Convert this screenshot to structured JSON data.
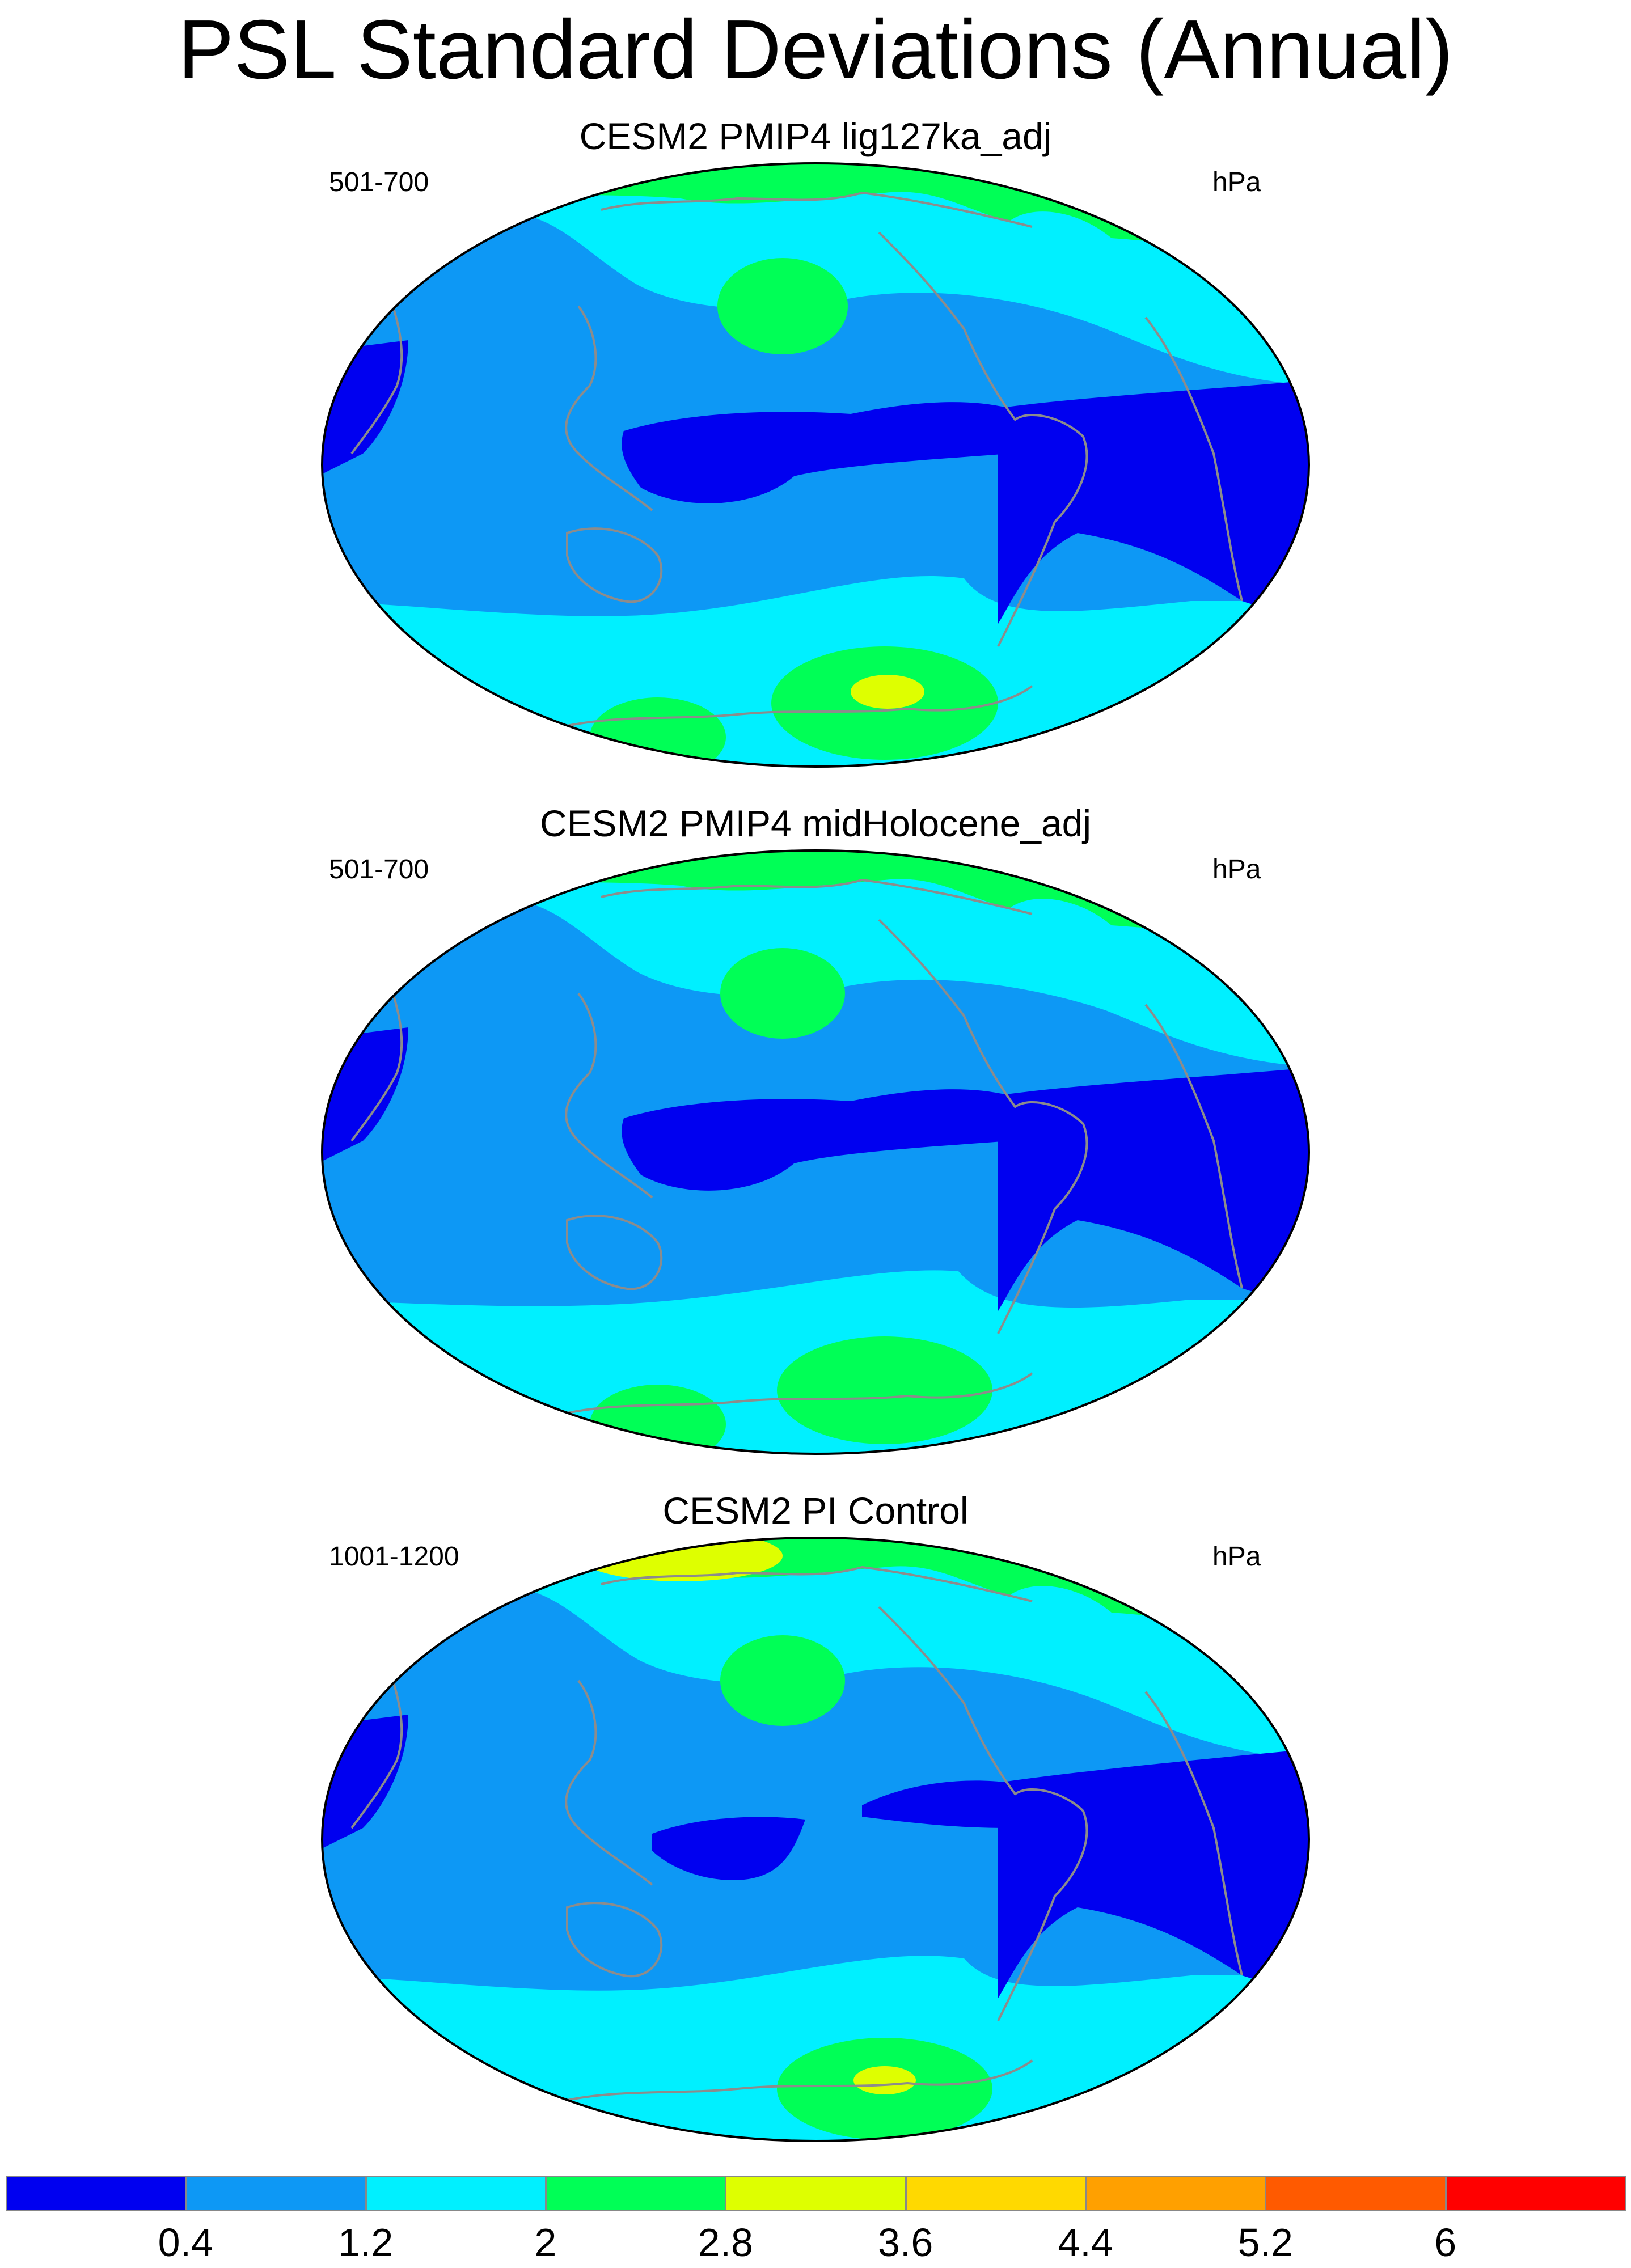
{
  "title": "PSL Standard Deviations (Annual)",
  "panels": [
    {
      "title": "CESM2 PMIP4 lig127ka_adj",
      "years": "501-700",
      "units": "hPa"
    },
    {
      "title": "CESM2 PMIP4 midHolocene_adj",
      "years": "501-700",
      "units": "hPa"
    },
    {
      "title": "CESM2 PI Control",
      "years": "1001-1200",
      "units": "hPa"
    }
  ],
  "colorbar": {
    "labels": [
      "0.4",
      "1.2",
      "2",
      "2.8",
      "3.6",
      "4.4",
      "5.2",
      "6"
    ],
    "colors": [
      "#0000f0",
      "#0d98f5",
      "#00f0ff",
      "#00ff56",
      "#deff00",
      "#ffd900",
      "#ffa000",
      "#ff5a00",
      "#ff0000"
    ]
  }
}
